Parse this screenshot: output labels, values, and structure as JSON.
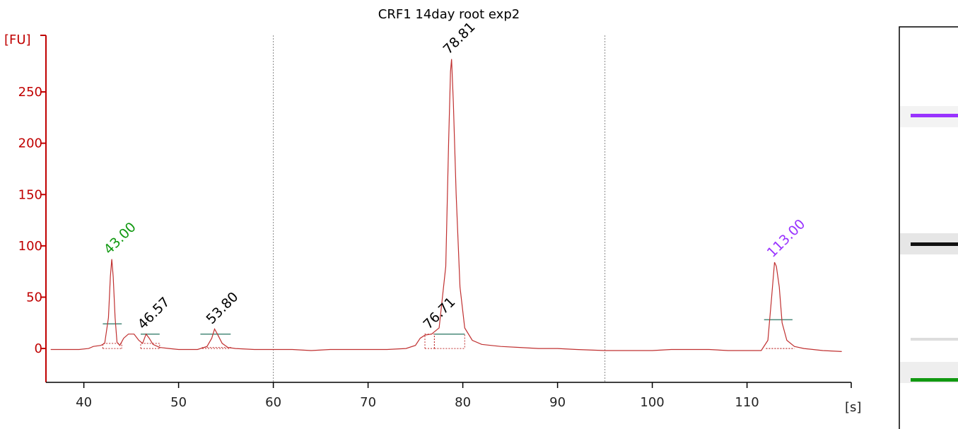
{
  "chart_data": {
    "type": "line",
    "title": "CRF1 14day root exp2",
    "ylabel": "[FU]",
    "xlabel": "[s]",
    "xlim": [
      36,
      121
    ],
    "ylim": [
      -33,
      312
    ],
    "xticks": [
      40,
      50,
      60,
      70,
      80,
      90,
      100,
      110
    ],
    "yticks": [
      0,
      50,
      100,
      150,
      200,
      250
    ],
    "vertical_markers": [
      60,
      95
    ],
    "grid": false,
    "colors": {
      "trace": "#c03030",
      "axis_y": "#c00000",
      "marker_lower": "#119911",
      "marker_upper": "#9933ff",
      "sample_peak": "#000000",
      "baseline": "#4a8a7a"
    },
    "peak_labels": [
      {
        "text": "43.00",
        "x": 43.0,
        "y": 87,
        "color": "#119911"
      },
      {
        "text": "46.57",
        "x": 46.57,
        "y": 14,
        "color": "#000000"
      },
      {
        "text": "53.80",
        "x": 53.8,
        "y": 19,
        "color": "#000000"
      },
      {
        "text": "76.71",
        "x": 76.71,
        "y": 14,
        "color": "#000000"
      },
      {
        "text": "78.81",
        "x": 78.81,
        "y": 282,
        "color": "#000000"
      },
      {
        "text": "113.00",
        "x": 113.0,
        "y": 84,
        "color": "#9933ff"
      }
    ],
    "series": [
      {
        "values": [
          [
            36.5,
            -1
          ],
          [
            38,
            -1
          ],
          [
            39.5,
            -1
          ],
          [
            40.5,
            0
          ],
          [
            41,
            2
          ],
          [
            41.8,
            3
          ],
          [
            42.2,
            5
          ],
          [
            42.6,
            30
          ],
          [
            42.8,
            70
          ],
          [
            42.95,
            87
          ],
          [
            43.1,
            70
          ],
          [
            43.3,
            30
          ],
          [
            43.5,
            6
          ],
          [
            43.8,
            3
          ],
          [
            44.2,
            10
          ],
          [
            44.7,
            14
          ],
          [
            45.3,
            14
          ],
          [
            45.8,
            8
          ],
          [
            46.2,
            5
          ],
          [
            46.57,
            14
          ],
          [
            46.9,
            10
          ],
          [
            47.3,
            4
          ],
          [
            48,
            1
          ],
          [
            49,
            0
          ],
          [
            50,
            -1
          ],
          [
            52,
            -1
          ],
          [
            53,
            2
          ],
          [
            53.5,
            10
          ],
          [
            53.8,
            19
          ],
          [
            54.1,
            14
          ],
          [
            54.6,
            5
          ],
          [
            55.2,
            1
          ],
          [
            56,
            0
          ],
          [
            58,
            -1
          ],
          [
            60,
            -1
          ],
          [
            62,
            -1
          ],
          [
            64,
            -2
          ],
          [
            66,
            -1
          ],
          [
            68,
            -1
          ],
          [
            70,
            -1
          ],
          [
            72,
            -1
          ],
          [
            74,
            0
          ],
          [
            75,
            3
          ],
          [
            75.5,
            10
          ],
          [
            76,
            13
          ],
          [
            76.71,
            14
          ],
          [
            77.5,
            20
          ],
          [
            78.2,
            80
          ],
          [
            78.5,
            200
          ],
          [
            78.7,
            270
          ],
          [
            78.81,
            282
          ],
          [
            79,
            240
          ],
          [
            79.3,
            150
          ],
          [
            79.7,
            60
          ],
          [
            80.2,
            20
          ],
          [
            81,
            8
          ],
          [
            82,
            4
          ],
          [
            84,
            2
          ],
          [
            86,
            1
          ],
          [
            88,
            0
          ],
          [
            90,
            0
          ],
          [
            92,
            -1
          ],
          [
            95,
            -2
          ],
          [
            98,
            -2
          ],
          [
            100,
            -2
          ],
          [
            102,
            -1
          ],
          [
            104,
            -1
          ],
          [
            106,
            -1
          ],
          [
            108,
            -2
          ],
          [
            110,
            -2
          ],
          [
            111.5,
            -2
          ],
          [
            112.2,
            8
          ],
          [
            112.6,
            50
          ],
          [
            112.9,
            84
          ],
          [
            113.1,
            80
          ],
          [
            113.4,
            60
          ],
          [
            113.7,
            25
          ],
          [
            114.2,
            8
          ],
          [
            115,
            2
          ],
          [
            116,
            0
          ],
          [
            118,
            -2
          ],
          [
            120,
            -3
          ]
        ]
      }
    ]
  },
  "gel": {
    "bands": [
      {
        "label": "upper-marker-band",
        "color": "#9933ff"
      },
      {
        "label": "sample-band",
        "color": "#111111"
      },
      {
        "label": "faint-band",
        "color": "#dddddd"
      },
      {
        "label": "lower-marker-band",
        "color": "#119911"
      }
    ]
  }
}
